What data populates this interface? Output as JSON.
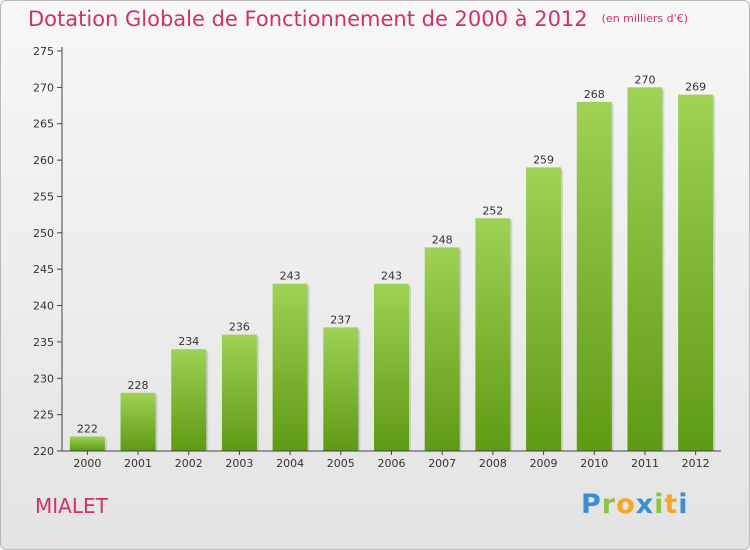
{
  "header": {
    "title": "Dotation Globale de Fonctionnement de 2000 à 2012",
    "unit": "(en milliers d'€)"
  },
  "commune": "MIALET",
  "logo": {
    "text": "Proxiti",
    "letters": [
      {
        "char": "P",
        "color": "#3a8fd0"
      },
      {
        "char": "r",
        "color": "#8bc34a"
      },
      {
        "char": "o",
        "color": "#f5a623"
      },
      {
        "char": "x",
        "color": "#3a8fd0"
      },
      {
        "char": "i",
        "color": "#8bc34a"
      },
      {
        "char": "t",
        "color": "#f5a623"
      },
      {
        "char": "i",
        "color": "#3a8fd0"
      }
    ]
  },
  "colors": {
    "title": "#cc3366",
    "bar_top": "#9fd155",
    "bar_bottom": "#5e9a14"
  },
  "chart_data": {
    "type": "bar",
    "title": "Dotation Globale de Fonctionnement de 2000 à 2012",
    "subtitle": "(en milliers d'€)",
    "categories": [
      "2000",
      "2001",
      "2002",
      "2003",
      "2004",
      "2005",
      "2006",
      "2007",
      "2008",
      "2009",
      "2010",
      "2011",
      "2012"
    ],
    "values": [
      222,
      228,
      234,
      236,
      243,
      237,
      243,
      248,
      252,
      259,
      268,
      270,
      269
    ],
    "ylim": [
      220,
      275
    ],
    "yticks": [
      220,
      225,
      230,
      235,
      240,
      245,
      250,
      255,
      260,
      265,
      270,
      275
    ],
    "grid": false,
    "legend": "none"
  }
}
